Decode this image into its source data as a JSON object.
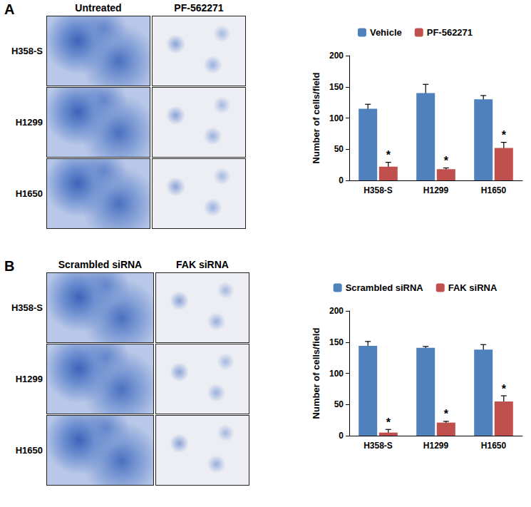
{
  "figure": {
    "panels": [
      {
        "label": "A",
        "columns": [
          "Untreated",
          "PF-562271"
        ],
        "rows": [
          "H358-S",
          "H1299",
          "H1650"
        ]
      },
      {
        "label": "B",
        "columns": [
          "Scrambled siRNA",
          "FAK siRNA"
        ],
        "rows": [
          "H358-S",
          "H1299",
          "H1650"
        ]
      }
    ]
  },
  "chart_data": [
    {
      "type": "bar",
      "ylabel": "Number of cells/field",
      "categories": [
        "H358-S",
        "H1299",
        "H1650"
      ],
      "series": [
        {
          "name": "Vehicle",
          "color": "#4f81bd",
          "values": [
            115,
            140,
            130
          ],
          "errors": [
            7,
            14,
            6
          ]
        },
        {
          "name": "PF-562271",
          "color": "#c0504d",
          "values": [
            22,
            18,
            52
          ],
          "errors": [
            7,
            2,
            9
          ],
          "significance": [
            "*",
            "*",
            "*"
          ]
        }
      ],
      "ylim": [
        0,
        200
      ],
      "yticks": [
        0,
        50,
        100,
        150,
        200
      ],
      "grid": false,
      "legend": "top"
    },
    {
      "type": "bar",
      "ylabel": "Number of cells/field",
      "categories": [
        "H358-S",
        "H1299",
        "H1650"
      ],
      "series": [
        {
          "name": "Scrambled siRNA",
          "color": "#4f81bd",
          "values": [
            144,
            141,
            138
          ],
          "errors": [
            7,
            2,
            8
          ]
        },
        {
          "name": "FAK siRNA",
          "color": "#c0504d",
          "values": [
            5,
            21,
            55
          ],
          "errors": [
            5,
            2,
            9
          ],
          "significance": [
            "*",
            "*",
            "*"
          ]
        }
      ],
      "ylim": [
        0,
        200
      ],
      "yticks": [
        0,
        50,
        100,
        150,
        200
      ],
      "grid": false,
      "legend": "top"
    }
  ]
}
